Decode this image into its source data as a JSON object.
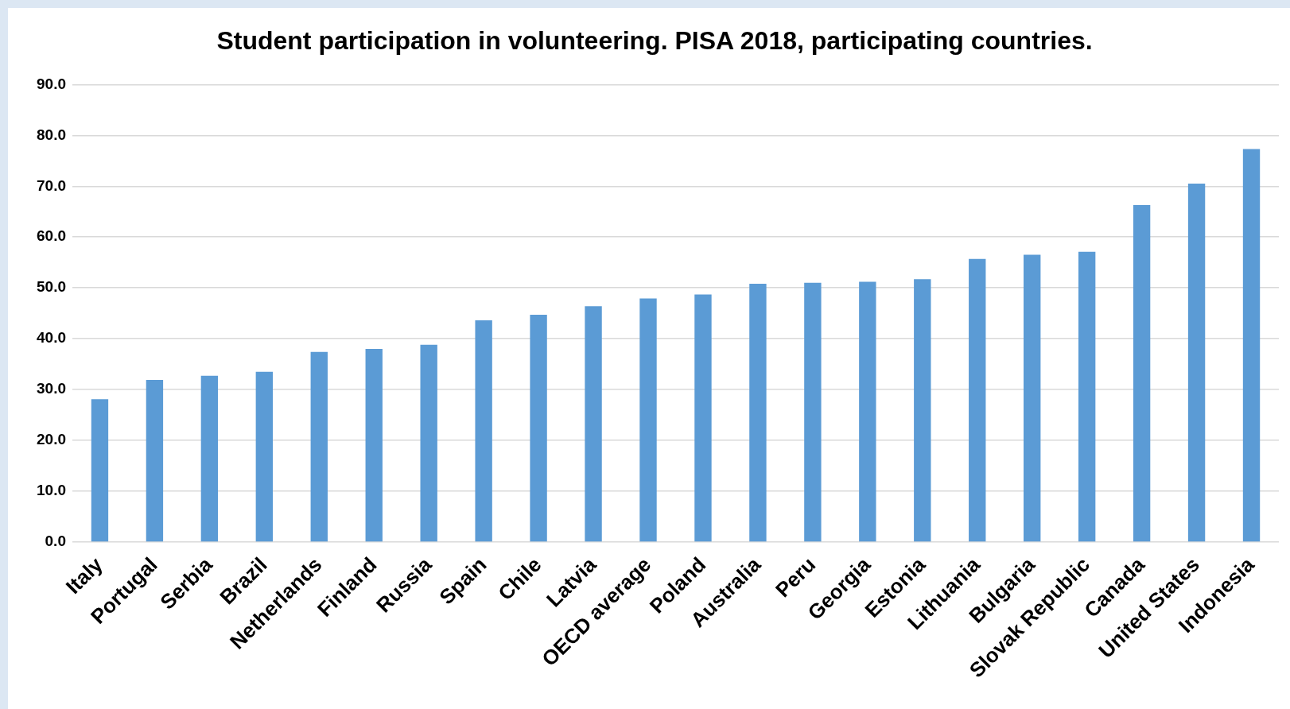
{
  "chart_data": {
    "type": "bar",
    "title": "Student participation in volunteering. PISA 2018, participating countries.",
    "categories": [
      "Italy",
      "Portugal",
      "Serbia",
      "Brazil",
      "Netherlands",
      "Finland",
      "Russia",
      "Spain",
      "Chile",
      "Latvia",
      "OECD average",
      "Poland",
      "Australia",
      "Peru",
      "Georgia",
      "Estonia",
      "Lithuania",
      "Bulgaria",
      "Slovak Republic",
      "Canada",
      "United States",
      "Indonesia"
    ],
    "values": [
      28.1,
      31.9,
      32.7,
      33.5,
      37.4,
      38.0,
      38.8,
      43.6,
      44.7,
      46.4,
      47.9,
      48.7,
      50.8,
      51.0,
      51.2,
      51.7,
      55.7,
      56.5,
      57.1,
      66.3,
      70.5,
      77.3
    ],
    "color": "#5b9bd5",
    "ylim": [
      0,
      90
    ],
    "yticks": [
      {
        "value": 0,
        "label": "0.0"
      },
      {
        "value": 10,
        "label": "10.0"
      },
      {
        "value": 20,
        "label": "20.0"
      },
      {
        "value": 30,
        "label": "30.0"
      },
      {
        "value": 40,
        "label": "40.0"
      },
      {
        "value": 50,
        "label": "50.0"
      },
      {
        "value": 60,
        "label": "60.0"
      },
      {
        "value": 70,
        "label": "70.0"
      },
      {
        "value": 80,
        "label": "80.0"
      },
      {
        "value": 90,
        "label": "90.0"
      }
    ],
    "grid": "y"
  }
}
